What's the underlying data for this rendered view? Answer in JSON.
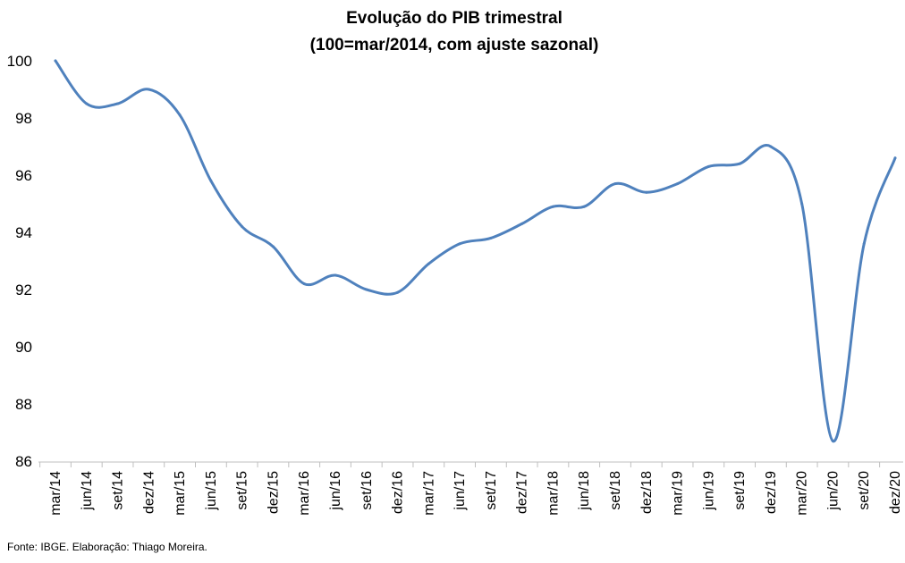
{
  "chart_data": {
    "type": "line",
    "title": "Evolução do PIB trimestral",
    "subtitle": "(100=mar/2014, com ajuste sazonal)",
    "categories": [
      "mar/14",
      "jun/14",
      "set/14",
      "dez/14",
      "mar/15",
      "jun/15",
      "set/15",
      "dez/15",
      "mar/16",
      "jun/16",
      "set/16",
      "dez/16",
      "mar/17",
      "jun/17",
      "set/17",
      "dez/17",
      "mar/18",
      "jun/18",
      "set/18",
      "dez/18",
      "mar/19",
      "jun/19",
      "set/19",
      "dez/19",
      "mar/20",
      "jun/20",
      "set/20",
      "dez/20"
    ],
    "series": [
      {
        "values": [
          100.0,
          98.5,
          98.5,
          99.0,
          98.1,
          95.8,
          94.2,
          93.5,
          92.2,
          92.5,
          92.0,
          91.9,
          92.9,
          93.6,
          93.8,
          94.3,
          94.9,
          94.9,
          95.7,
          95.4,
          95.7,
          96.3,
          96.4,
          97.0,
          95.0,
          86.7,
          93.6,
          96.6
        ],
        "color": "#4F81BD"
      }
    ],
    "ylim": [
      86,
      100
    ],
    "yticks": [
      "86",
      "88",
      "90",
      "92",
      "94",
      "96",
      "98",
      "100"
    ],
    "grid": false,
    "legend": "none"
  },
  "source": "Fonte: IBGE. Elaboração: Thiago Moreira."
}
